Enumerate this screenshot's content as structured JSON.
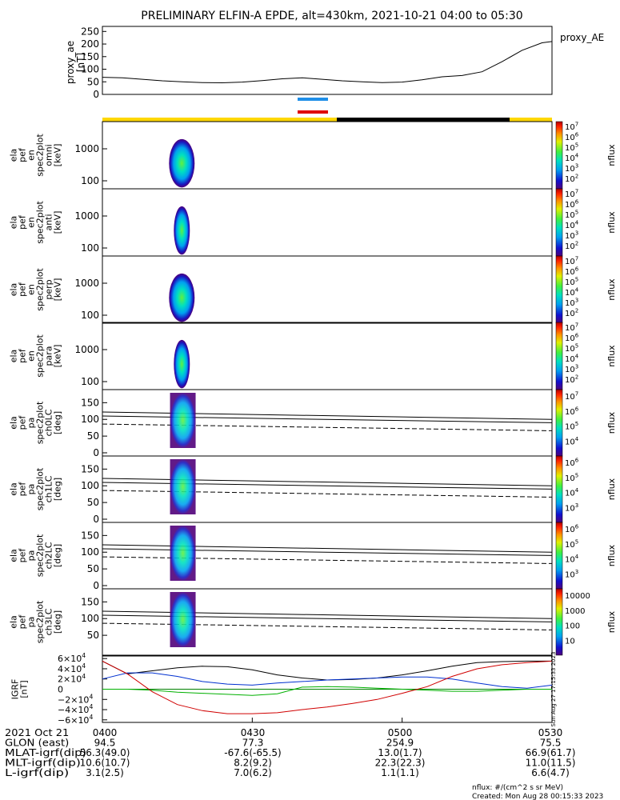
{
  "title": "PRELIMINARY ELFIN-A EPDE, alt=430km, 2021-10-21 04:00 to 05:30",
  "colors": {
    "blue_bar": "#1f8fe8",
    "red_bar": "#e00000",
    "gold_bar": "#ffd700",
    "black": "#000000"
  },
  "proxy_ae": {
    "label_lines": [
      "proxy_ae",
      "[nT]"
    ],
    "legend": "proxy_AE",
    "yticks": [
      "250",
      "200",
      "150",
      "100",
      "50",
      "0"
    ],
    "ytick_values": [
      250,
      200,
      150,
      100,
      50,
      0
    ],
    "ylim": [
      0,
      270
    ],
    "x": [
      0,
      4,
      8,
      12,
      16,
      20,
      24,
      28,
      32,
      36,
      40,
      44,
      48,
      52,
      56,
      60,
      64,
      68,
      72,
      76,
      80,
      84,
      88,
      90
    ],
    "y": [
      68,
      66,
      60,
      54,
      50,
      47,
      46,
      49,
      55,
      62,
      66,
      60,
      54,
      50,
      47,
      49,
      58,
      70,
      75,
      90,
      130,
      175,
      205,
      210
    ]
  },
  "spec_panels": [
    {
      "lines": [
        "ela",
        "pef",
        "en",
        "spec2plot",
        "omni",
        "[keV]"
      ],
      "yticks": [
        "1000",
        "100"
      ],
      "cbar": [
        "10^7",
        "10^6",
        "10^5",
        "10^4",
        "10^3",
        "10^2"
      ],
      "cbar_label": "nflux"
    },
    {
      "lines": [
        "ela",
        "pef",
        "en",
        "spec2plot",
        "anti",
        "[keV]"
      ],
      "yticks": [
        "1000",
        "100"
      ],
      "cbar": [
        "10^7",
        "10^6",
        "10^5",
        "10^4",
        "10^3",
        "10^2"
      ],
      "cbar_label": "nflux"
    },
    {
      "lines": [
        "ela",
        "pef",
        "en",
        "spec2plot",
        "perp",
        "[keV]"
      ],
      "yticks": [
        "1000",
        "100"
      ],
      "cbar": [
        "10^7",
        "10^6",
        "10^5",
        "10^4",
        "10^3",
        "10^2"
      ],
      "cbar_label": "nflux"
    },
    {
      "lines": [
        "ela",
        "pef",
        "en",
        "spec2plot",
        "para",
        "[keV]"
      ],
      "yticks": [
        "1000",
        "100"
      ],
      "cbar": [
        "10^7",
        "10^6",
        "10^5",
        "10^4",
        "10^3",
        "10^2"
      ],
      "cbar_label": "nflux"
    }
  ],
  "pa_panels": [
    {
      "lines": [
        "ela",
        "pef",
        "pa",
        "spec2plot",
        "ch0LC",
        "[deg]"
      ],
      "yticks": [
        "150",
        "100",
        "50",
        "0"
      ],
      "cbar": [
        "10^7",
        "10^6",
        "10^5",
        "10^4"
      ],
      "cbar_label": "nflux"
    },
    {
      "lines": [
        "ela",
        "pef",
        "pa",
        "spec2plot",
        "ch1LC",
        "[deg]"
      ],
      "yticks": [
        "150",
        "100",
        "50",
        "0"
      ],
      "cbar": [
        "10^6",
        "10^5",
        "10^4",
        "10^3"
      ],
      "cbar_label": "nflux"
    },
    {
      "lines": [
        "ela",
        "pef",
        "pa",
        "spec2plot",
        "ch2LC",
        "[deg]"
      ],
      "yticks": [
        "150",
        "100",
        "50",
        "0"
      ],
      "cbar": [
        "10^6",
        "10^5",
        "10^4",
        "10^3"
      ],
      "cbar_label": "nflux"
    },
    {
      "lines": [
        "ela",
        "pef",
        "pa",
        "spec2plot",
        "ch3LC",
        "[deg]"
      ],
      "yticks": [
        "150",
        "100",
        "50"
      ],
      "cbar": [
        "10000",
        "1000",
        "100",
        "10"
      ],
      "cbar_label": "nflux"
    }
  ],
  "igrf": {
    "label_lines": [
      "IGRF",
      "[nT]"
    ],
    "yticks": [
      "6×10^4",
      "4×10^4",
      "2×10^4",
      "0",
      "−2×10^4",
      "−4×10^4",
      "−6×10^4"
    ],
    "ytick_values": [
      60000,
      40000,
      20000,
      0,
      -20000,
      -40000,
      -60000
    ],
    "ylim": [
      -65000,
      65000
    ],
    "x": [
      0,
      5,
      10,
      15,
      20,
      25,
      30,
      35,
      40,
      45,
      50,
      55,
      60,
      65,
      70,
      75,
      80,
      85,
      90
    ],
    "series": [
      {
        "color": "#000000",
        "values": [
          55000,
          30000,
          36000,
          42000,
          45000,
          44000,
          38000,
          28000,
          22000,
          18000,
          19000,
          22000,
          28000,
          36000,
          45000,
          52000,
          54000,
          55000,
          55000
        ]
      },
      {
        "color": "#0030d0",
        "values": [
          20000,
          32000,
          32000,
          25000,
          15000,
          10000,
          8000,
          12000,
          15000,
          18000,
          20000,
          22000,
          24000,
          24000,
          20000,
          12000,
          5000,
          2000,
          8000
        ]
      },
      {
        "color": "#00b000",
        "values": [
          0,
          0,
          -2000,
          -6000,
          -8000,
          -10000,
          -12000,
          -9000,
          4000,
          5000,
          4000,
          2000,
          0,
          -2000,
          -4000,
          -4000,
          -2000,
          0,
          0
        ]
      },
      {
        "color": "#d00000",
        "values": [
          55000,
          30000,
          -5000,
          -30000,
          -42000,
          -48000,
          -48000,
          -46000,
          -40000,
          -35000,
          -28000,
          -20000,
          -8000,
          5000,
          25000,
          40000,
          48000,
          52000,
          55000
        ]
      }
    ],
    "flat": {
      "color": "#008000",
      "value": 0
    },
    "side_text": "Sun Aug 27 17:15:33 2023"
  },
  "tick_times": [
    "0400",
    "0430",
    "0500",
    "0530"
  ],
  "ephemeris": {
    "rows": [
      [
        "2021 Oct 21",
        "0400",
        "0430",
        "0500",
        "0530"
      ],
      [
        "GLON (east)",
        "94.5",
        "77.3",
        "254.9",
        "75.5"
      ],
      [
        "MLAT-igrf(dip)",
        "56.3(49.0)",
        "-67.6(-65.5)",
        "13.0(1.7)",
        "66.9(61.7)"
      ],
      [
        "MLT-igrf(dip)",
        "10.6(10.7)",
        "8.2(9.2)",
        "22.3(22.3)",
        "11.0(11.5)"
      ],
      [
        "L-igrf(dip)",
        "3.1(2.5)",
        "7.0(6.2)",
        "1.1(1.1)",
        "6.6(4.7)"
      ]
    ]
  },
  "footer": {
    "units": "nflux: #/(cm^2 s sr MeV)",
    "created": "Created: Mon Aug 28 00:15:33 2023"
  },
  "chart_data": [
    {
      "type": "line",
      "title": "proxy_ae",
      "ylabel": "proxy_ae [nT]",
      "ylim": [
        0,
        270
      ],
      "xlim": [
        "0400",
        "0530"
      ],
      "series": [
        {
          "name": "proxy_AE",
          "x_minutes": [
            0,
            4,
            8,
            12,
            16,
            20,
            24,
            28,
            32,
            36,
            40,
            44,
            48,
            52,
            56,
            60,
            64,
            68,
            72,
            76,
            80,
            84,
            88,
            90
          ],
          "values": [
            68,
            66,
            60,
            54,
            50,
            47,
            46,
            49,
            55,
            62,
            66,
            60,
            54,
            50,
            47,
            49,
            58,
            70,
            75,
            90,
            130,
            175,
            205,
            210
          ]
        }
      ]
    },
    {
      "type": "heatmap",
      "ylabel": "[keV]",
      "yscale": "log",
      "yticks": [
        100,
        1000
      ],
      "xlim": [
        "0400",
        "0530"
      ],
      "data_window_minutes": [
        15,
        18
      ]
    },
    {
      "type": "heatmap",
      "ylabel": "[deg]",
      "yticks": [
        0,
        50,
        100,
        150
      ],
      "xlim": [
        "0400",
        "0530"
      ],
      "data_window_minutes": [
        15,
        18
      ]
    },
    {
      "type": "line",
      "ylabel": "IGRF [nT]",
      "ylim": [
        -65000,
        65000
      ],
      "xlim": [
        "0400",
        "0530"
      ]
    }
  ]
}
